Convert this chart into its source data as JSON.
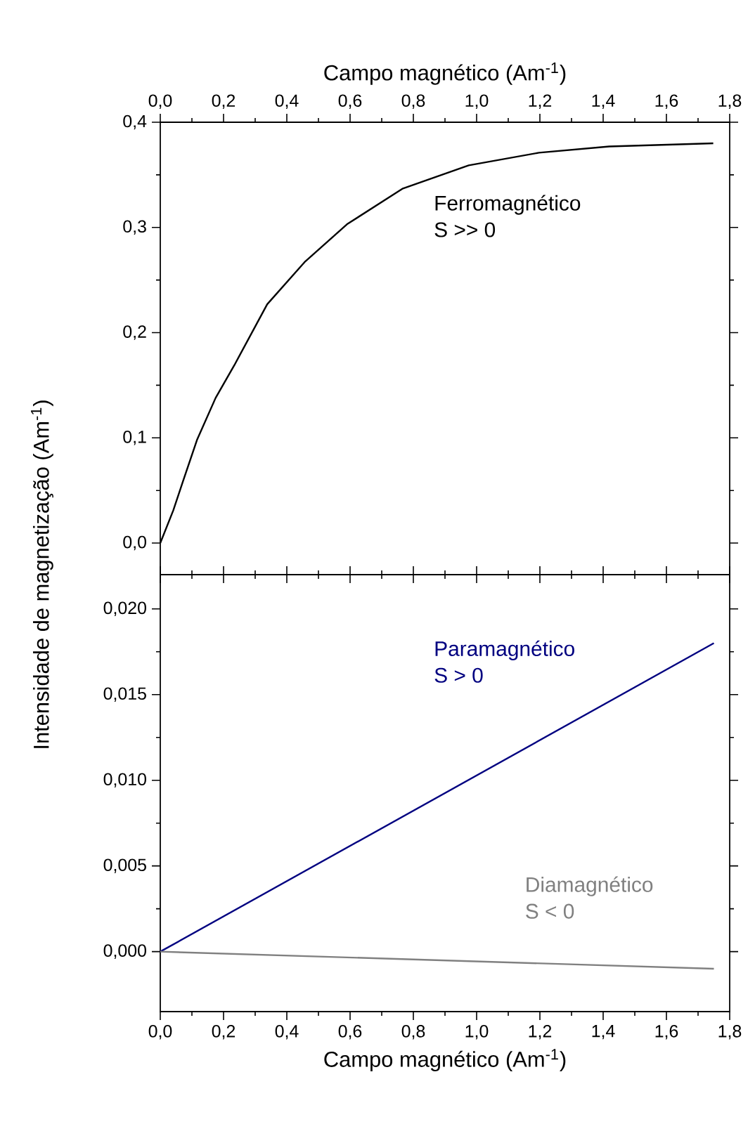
{
  "chart_data": [
    {
      "type": "line",
      "xlabel": "Campo magnético (Am$^{-1}$)",
      "ylabel": "Intensidade de magnetização (Am$^{-1}$)",
      "xlim": [
        0,
        1.8
      ],
      "xticks": [
        {
          "value": 0,
          "label": "0,0"
        },
        {
          "value": 0.2,
          "label": "0,2"
        },
        {
          "value": 0.4,
          "label": "0,4"
        },
        {
          "value": 0.6,
          "label": "0,6"
        },
        {
          "value": 0.8,
          "label": "0,8"
        },
        {
          "value": 1.0,
          "label": "1,0"
        },
        {
          "value": 1.2,
          "label": "1,2"
        },
        {
          "value": 1.4,
          "label": "1,4"
        },
        {
          "value": 1.6,
          "label": "1,6"
        },
        {
          "value": 1.8,
          "label": "1,8"
        }
      ],
      "ylim": [
        -0.03,
        0.4
      ],
      "yticks": [
        {
          "value": 0,
          "label": "0,0"
        },
        {
          "value": 0.1,
          "label": "0,1"
        },
        {
          "value": 0.2,
          "label": "0,2"
        },
        {
          "value": 0.3,
          "label": "0,3"
        },
        {
          "value": 0.4,
          "label": "0,4"
        }
      ],
      "series": [
        {
          "name": "Ferromagnético",
          "color": "#000000",
          "x": [
            0,
            0.041,
            0.071,
            0.116,
            0.175,
            0.234,
            0.338,
            0.456,
            0.59,
            0.767,
            0.975,
            1.197,
            1.419,
            1.748
          ],
          "values": [
            0,
            0.031,
            0.058,
            0.098,
            0.138,
            0.169,
            0.227,
            0.267,
            0.303,
            0.337,
            0.359,
            0.371,
            0.377,
            0.38
          ]
        }
      ],
      "annotations": [
        "S >> 0"
      ]
    },
    {
      "type": "line",
      "xlabel": "Campo magnético (Am$^{-1}$)",
      "xlim": [
        0,
        1.8
      ],
      "xticks": [
        {
          "value": 0,
          "label": "0,0"
        },
        {
          "value": 0.2,
          "label": "0,2"
        },
        {
          "value": 0.4,
          "label": "0,4"
        },
        {
          "value": 0.6,
          "label": "0,6"
        },
        {
          "value": 0.8,
          "label": "0,8"
        },
        {
          "value": 1.0,
          "label": "1,0"
        },
        {
          "value": 1.2,
          "label": "1,2"
        },
        {
          "value": 1.4,
          "label": "1,4"
        },
        {
          "value": 1.6,
          "label": "1,6"
        },
        {
          "value": 1.8,
          "label": "1,8"
        }
      ],
      "ylim": [
        -0.0035,
        0.022
      ],
      "yticks": [
        {
          "value": 0,
          "label": "0,000"
        },
        {
          "value": 0.005,
          "label": "0,005"
        },
        {
          "value": 0.01,
          "label": "0,010"
        },
        {
          "value": 0.015,
          "label": "0,015"
        },
        {
          "value": 0.02,
          "label": "0,020"
        }
      ],
      "series": [
        {
          "name": "Paramagnético",
          "color": "#000080",
          "x": [
            0,
            1.75
          ],
          "values": [
            0,
            0.018
          ]
        },
        {
          "name": "Diamagnético",
          "color": "#808080",
          "x": [
            0,
            1.75
          ],
          "values": [
            0,
            -0.001
          ]
        }
      ],
      "annotations": [
        "S > 0",
        "S < 0"
      ]
    }
  ]
}
